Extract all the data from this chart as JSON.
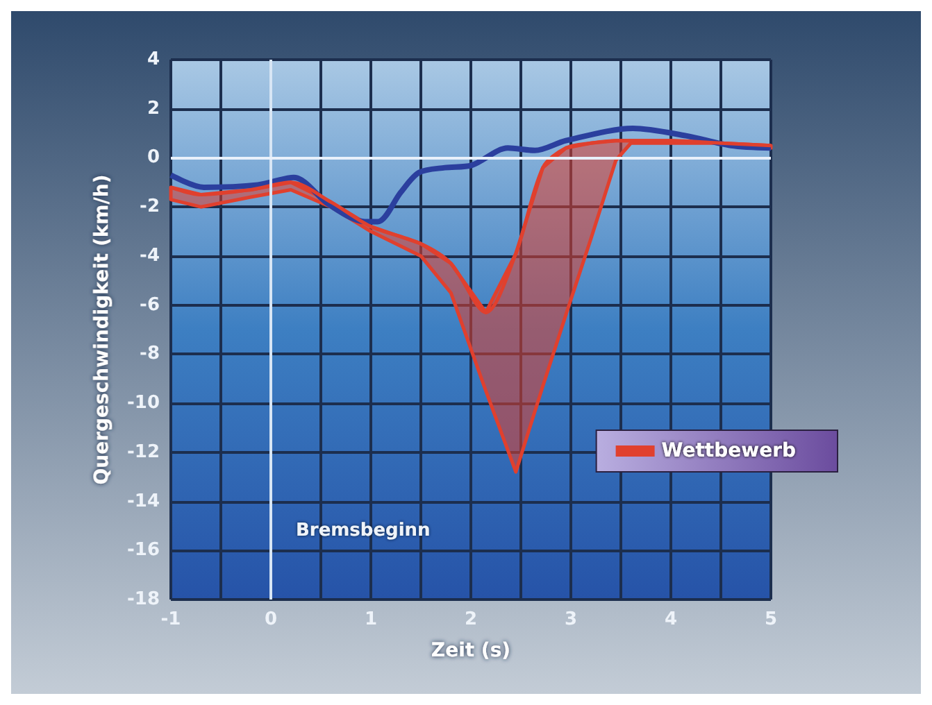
{
  "chart_data": {
    "type": "line",
    "xlabel": "Zeit (s)",
    "ylabel": "Quergeschwindigkeit (km/h)",
    "xlim": [
      -1,
      5
    ],
    "ylim": [
      -18,
      4
    ],
    "xticks": [
      -1,
      {
        "value": -0.5,
        "label": null
      },
      0,
      {
        "value": 0.5,
        "label": null
      },
      1,
      {
        "value": 1.5,
        "label": null
      },
      2,
      {
        "value": 2.5,
        "label": null
      },
      3,
      {
        "value": 3.5,
        "label": null
      },
      4,
      {
        "value": 4.5,
        "label": null
      },
      5
    ],
    "yticks": [
      -18,
      -16,
      -14,
      -12,
      -10,
      -8,
      -6,
      -4,
      -2,
      0,
      2,
      4
    ],
    "grid": true,
    "legend": "bottom right",
    "marker": "none",
    "line_style": "solid",
    "series": [
      {
        "color": "#2b3f9e",
        "x": [
          -1,
          -0.67,
          -0.13,
          0.23,
          0.58,
          0.94,
          1.07,
          1.3,
          1.48,
          1.74,
          2.01,
          2.37,
          2.64,
          2.95,
          3.62,
          4.15,
          4.6,
          5
        ],
        "values": [
          -0.7,
          -1.2,
          -1.1,
          -0.8,
          -1.9,
          -2.6,
          -2.6,
          -1.4,
          -0.6,
          -0.4,
          -0.3,
          0.4,
          0.3,
          0.7,
          1.2,
          0.9,
          0.5,
          0.4
        ]
      },
      {
        "name": "Wettbewerb",
        "color": "#e0402e",
        "x": [
          -1,
          -0.7,
          -0.2,
          0.2,
          0.6,
          1,
          1.5,
          1.8,
          2.15,
          2.45,
          2.72,
          2.95,
          3.2,
          3.45,
          3.6,
          4,
          4.5,
          5
        ],
        "values": [
          -1.2,
          -1.5,
          -1.3,
          -1.0,
          -1.8,
          -2.8,
          -3.5,
          -4.3,
          -6.3,
          -3.9,
          -0.4,
          0.4,
          0.6,
          0.7,
          0.7,
          0.7,
          0.6,
          0.5
        ],
        "upper": [
          -1.2,
          -1.5,
          -1.3,
          -1.0,
          -1.8,
          -2.8,
          -3.5,
          -4.3,
          -6.3,
          -3.9,
          -0.4,
          0.4,
          0.6,
          0.7,
          0.7,
          0.7,
          0.6,
          0.5
        ],
        "lower": [
          -1.7,
          -2.0,
          -1.6,
          -1.3,
          -2.0,
          -3.0,
          -4.0,
          -5.5,
          -9.5,
          -12.8,
          -9.3,
          -6.4,
          -3.3,
          -0.1,
          0.6,
          0.6,
          0.6,
          0.4
        ]
      }
    ],
    "ref_lines": [
      {
        "axis": "x",
        "value": 0,
        "color": "#d8e6f5"
      },
      {
        "axis": "y",
        "value": 0,
        "color": "#e8f0fa"
      }
    ],
    "annotations": [
      "Bremsbeginn"
    ]
  }
}
